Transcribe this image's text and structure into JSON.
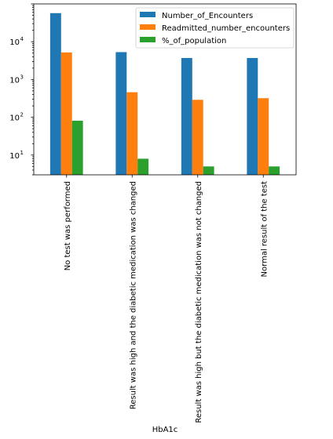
{
  "chart_data": {
    "type": "bar",
    "y_scale": "log",
    "ylim": [
      3,
      100000
    ],
    "y_ticks": [
      {
        "value": 10,
        "base": "10",
        "exp": "1"
      },
      {
        "value": 100,
        "base": "10",
        "exp": "2"
      },
      {
        "value": 1000,
        "base": "10",
        "exp": "3"
      },
      {
        "value": 10000,
        "base": "10",
        "exp": "4"
      }
    ],
    "xlabel": "HbA1c",
    "ylabel": "",
    "title": "",
    "grid": false,
    "legend_position": "top-right",
    "categories": [
      "No test was performed",
      "Result was high and the diabetic medication was changed",
      "Result was high but the diabetic medication was not changed",
      "Normal result of the test"
    ],
    "series": [
      {
        "name": "Number_of_Encounters",
        "color": "#1f77b4",
        "values": [
          57000,
          5300,
          3700,
          3700
        ]
      },
      {
        "name": "Readmitted_number_encounters",
        "color": "#ff7f0e",
        "values": [
          5200,
          460,
          290,
          320
        ]
      },
      {
        "name": "%_of_population",
        "color": "#2ca02c",
        "values": [
          81,
          8,
          5,
          5
        ]
      }
    ]
  }
}
